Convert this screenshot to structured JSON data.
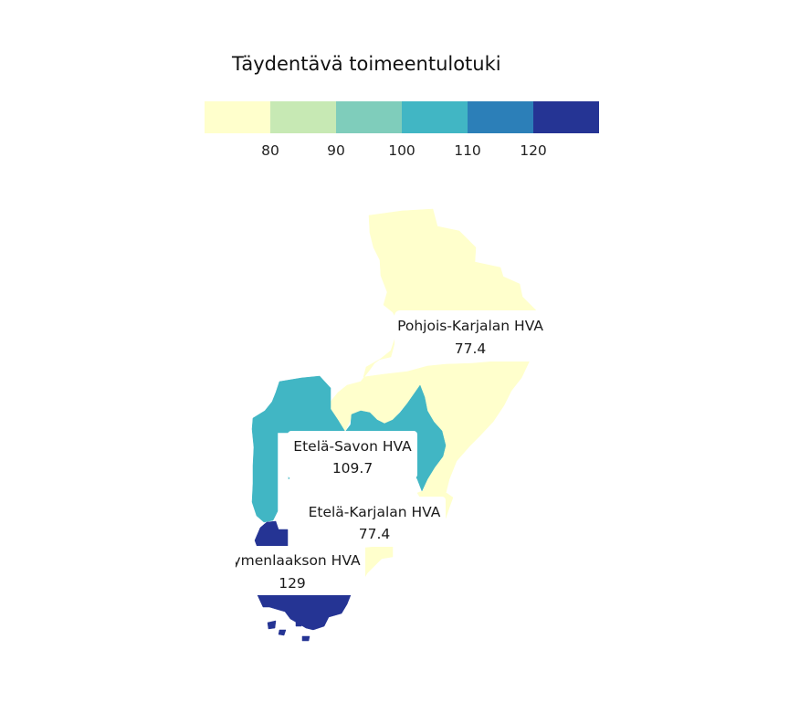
{
  "legend": {
    "title": "Täydentävä toimeentulotuki",
    "breaks": [
      80,
      90,
      100,
      110,
      120
    ],
    "colors": [
      "#ffffcc",
      "#c7e9b4",
      "#7fcdbb",
      "#41b6c4",
      "#2c7fb8",
      "#253494"
    ]
  },
  "regions": [
    {
      "id": "pohjois-karjala",
      "name": "Pohjois-Karjalan HVA",
      "value_label": "77.4",
      "value": 77.4,
      "color": "#ffffcc"
    },
    {
      "id": "etela-savo",
      "name": "Etelä-Savon HVA",
      "value_label": "109.7",
      "value": 109.7,
      "color": "#41b6c4"
    },
    {
      "id": "etela-karjala",
      "name": "Etelä-Karjalan HVA",
      "value_label": "77.4",
      "value": 77.4,
      "color": "#ffffcc"
    },
    {
      "id": "kymenlaakso",
      "name": "Kymenlaakson HVA",
      "value_label": "129",
      "value": 129,
      "color": "#253494"
    }
  ]
}
